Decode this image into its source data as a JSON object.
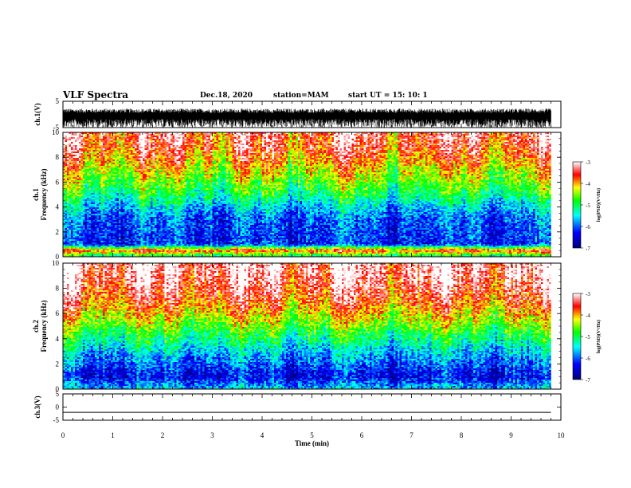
{
  "header": {
    "title": "VLF Spectra",
    "date": "Dec.18, 2020",
    "station": "station=MAM",
    "start": "start  UT =   15: 10: 1"
  },
  "chart_data": [
    {
      "type": "line",
      "panel": "ch1-waveform",
      "ylabel": "ch.1(V)",
      "ylim": [
        -5,
        5
      ],
      "yticks": [
        "5",
        "-5"
      ],
      "description_values": "dense noise waveform oscillating between about -5 and 2 V"
    },
    {
      "type": "heatmap",
      "panel": "ch1-spectrogram",
      "ylabel_line1": "ch.1",
      "ylabel_line2": "Frequency (kHz)",
      "ylim": [
        0,
        10
      ],
      "yticks": [
        "0",
        "2",
        "4",
        "6",
        "8",
        "10"
      ],
      "profile_logpsd": [
        [
          0,
          -5.2
        ],
        [
          0.5,
          -3.6
        ],
        [
          1,
          -6.2
        ],
        [
          2,
          -6.1
        ],
        [
          3,
          -6.0
        ],
        [
          4,
          -5.6
        ],
        [
          5,
          -5.0
        ],
        [
          6,
          -4.6
        ],
        [
          7,
          -4.2
        ],
        [
          8,
          -3.8
        ],
        [
          9,
          -3.5
        ],
        [
          10,
          -3.4
        ]
      ],
      "colorbar": {
        "label": "log(PSD)(V²/Hz)",
        "range": [
          -7,
          -3
        ],
        "ticks": [
          "-3",
          "-4",
          "-5",
          "-6",
          "-7"
        ]
      }
    },
    {
      "type": "heatmap",
      "panel": "ch2-spectrogram",
      "ylabel_line1": "ch.2",
      "ylabel_line2": "Frequency (kHz)",
      "ylim": [
        0,
        10
      ],
      "yticks": [
        "0",
        "2",
        "4",
        "6",
        "8",
        "10"
      ],
      "profile_logpsd": [
        [
          0,
          -5.6
        ],
        [
          1,
          -6.4
        ],
        [
          2,
          -6.0
        ],
        [
          3,
          -5.6
        ],
        [
          4,
          -5.1
        ],
        [
          5,
          -4.6
        ],
        [
          6,
          -4.1
        ],
        [
          7,
          -3.7
        ],
        [
          8,
          -3.4
        ],
        [
          9,
          -3.2
        ],
        [
          10,
          -3.1
        ]
      ],
      "colorbar": {
        "label": "log(PSD)(V²/Hz)",
        "range": [
          -7,
          -3
        ],
        "ticks": [
          "-3",
          "-4",
          "-5",
          "-6",
          "-7"
        ]
      }
    },
    {
      "type": "line",
      "panel": "ch3-waveform",
      "ylabel": "ch.3(V)",
      "ylim": [
        -5,
        5
      ],
      "yticks": [
        "5",
        "0",
        "-5"
      ],
      "values": [
        [
          0,
          -2
        ],
        [
          9.8,
          -2
        ]
      ]
    }
  ],
  "xaxis": {
    "label": "Time (min)",
    "range": [
      0,
      10
    ],
    "ticks": [
      "0",
      "1",
      "2",
      "3",
      "4",
      "5",
      "6",
      "7",
      "8",
      "9",
      "10"
    ],
    "data_end": 9.8
  },
  "colors": {
    "colormap": [
      "#00007a",
      "#0000ff",
      "#00ffff",
      "#00ff00",
      "#ffff00",
      "#ff0000",
      "#ffffff"
    ]
  }
}
